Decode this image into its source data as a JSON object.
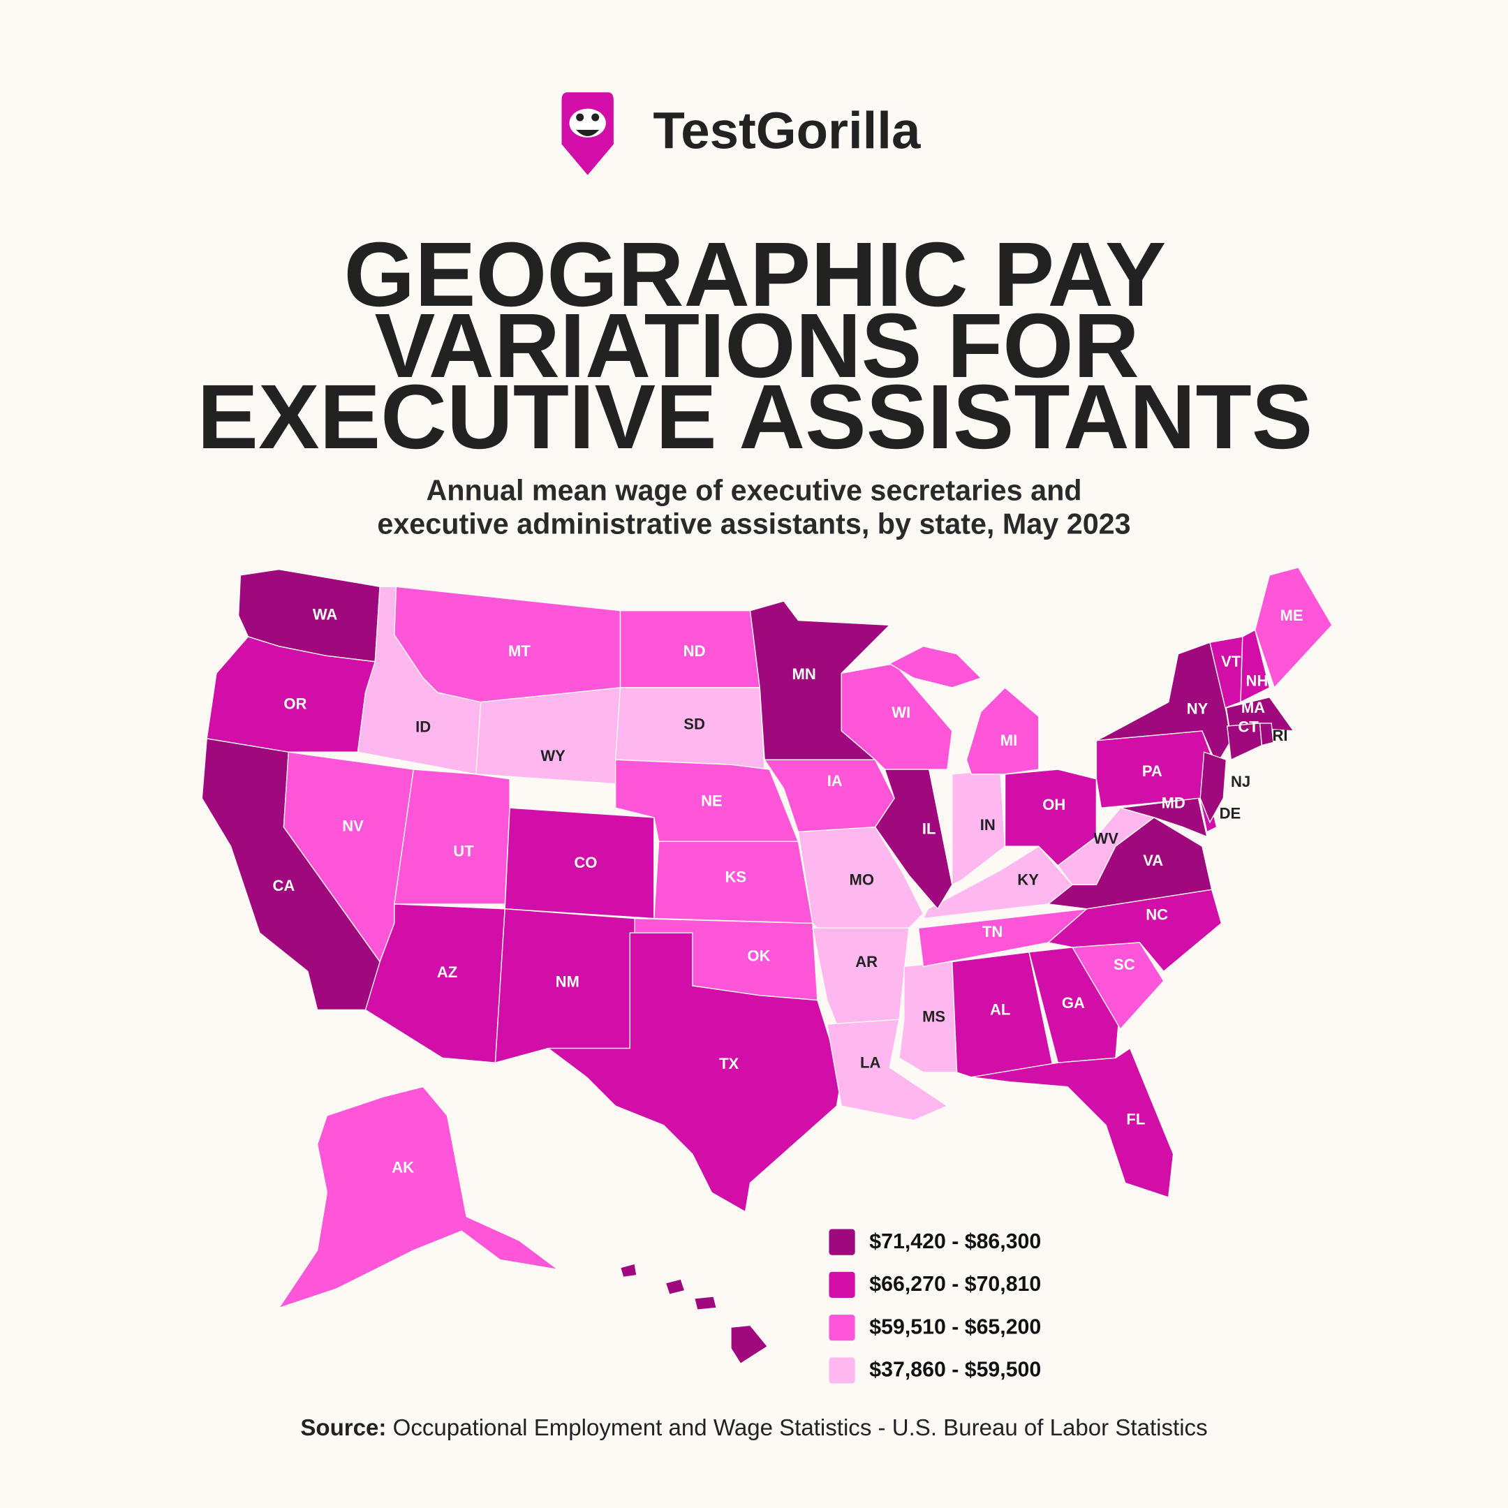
{
  "brand": "TestGorilla",
  "title_lines": [
    "GEOGRAPHIC PAY",
    "VARIATIONS FOR",
    "EXECUTIVE ASSISTANTS"
  ],
  "subtitle_lines": [
    "Annual mean wage of executive secretaries and",
    "executive administrative assistants, by state, May 2023"
  ],
  "legend": [
    {
      "label": "$71,420 - $86,300",
      "color": "#a0087e"
    },
    {
      "label": "$66,270 - $70,810",
      "color": "#d10fa8"
    },
    {
      "label": "$59,510 - $65,200",
      "color": "#ff55d8"
    },
    {
      "label": "$37,860 - $59,500",
      "color": "#ffb8ef"
    }
  ],
  "states": [
    {
      "code": "WA",
      "tier": 0
    },
    {
      "code": "OR",
      "tier": 1
    },
    {
      "code": "CA",
      "tier": 0
    },
    {
      "code": "ID",
      "tier": 3
    },
    {
      "code": "NV",
      "tier": 2
    },
    {
      "code": "MT",
      "tier": 2
    },
    {
      "code": "WY",
      "tier": 3
    },
    {
      "code": "UT",
      "tier": 2
    },
    {
      "code": "AZ",
      "tier": 1
    },
    {
      "code": "CO",
      "tier": 1
    },
    {
      "code": "NM",
      "tier": 1
    },
    {
      "code": "ND",
      "tier": 2
    },
    {
      "code": "SD",
      "tier": 3
    },
    {
      "code": "NE",
      "tier": 2
    },
    {
      "code": "KS",
      "tier": 2
    },
    {
      "code": "OK",
      "tier": 2
    },
    {
      "code": "TX",
      "tier": 1
    },
    {
      "code": "MN",
      "tier": 0
    },
    {
      "code": "IA",
      "tier": 2
    },
    {
      "code": "MO",
      "tier": 3
    },
    {
      "code": "AR",
      "tier": 3
    },
    {
      "code": "LA",
      "tier": 3
    },
    {
      "code": "MS",
      "tier": 3
    },
    {
      "code": "AL",
      "tier": 1
    },
    {
      "code": "GA",
      "tier": 1
    },
    {
      "code": "FL",
      "tier": 1
    },
    {
      "code": "SC",
      "tier": 2
    },
    {
      "code": "NC",
      "tier": 1
    },
    {
      "code": "TN",
      "tier": 2
    },
    {
      "code": "KY",
      "tier": 3
    },
    {
      "code": "IL",
      "tier": 0
    },
    {
      "code": "IN",
      "tier": 3
    },
    {
      "code": "WI",
      "tier": 2
    },
    {
      "code": "MI",
      "tier": 2
    },
    {
      "code": "OH",
      "tier": 1
    },
    {
      "code": "WV",
      "tier": 3
    },
    {
      "code": "PA",
      "tier": 1
    },
    {
      "code": "NY",
      "tier": 0
    },
    {
      "code": "VA",
      "tier": 0
    },
    {
      "code": "MD",
      "tier": 0
    },
    {
      "code": "DE",
      "tier": 1
    },
    {
      "code": "NJ",
      "tier": 0
    },
    {
      "code": "VT",
      "tier": 1
    },
    {
      "code": "NH",
      "tier": 1
    },
    {
      "code": "ME",
      "tier": 2
    },
    {
      "code": "MA",
      "tier": 0
    },
    {
      "code": "CT",
      "tier": 0
    },
    {
      "code": "RI",
      "tier": 0
    },
    {
      "code": "AK",
      "tier": 2
    },
    {
      "code": null,
      "tier": 0
    }
  ],
  "source": {
    "label": "Source:",
    "text": " Occupational Employment and Wage Statistics - U.S. Bureau of Labor Statistics"
  }
}
